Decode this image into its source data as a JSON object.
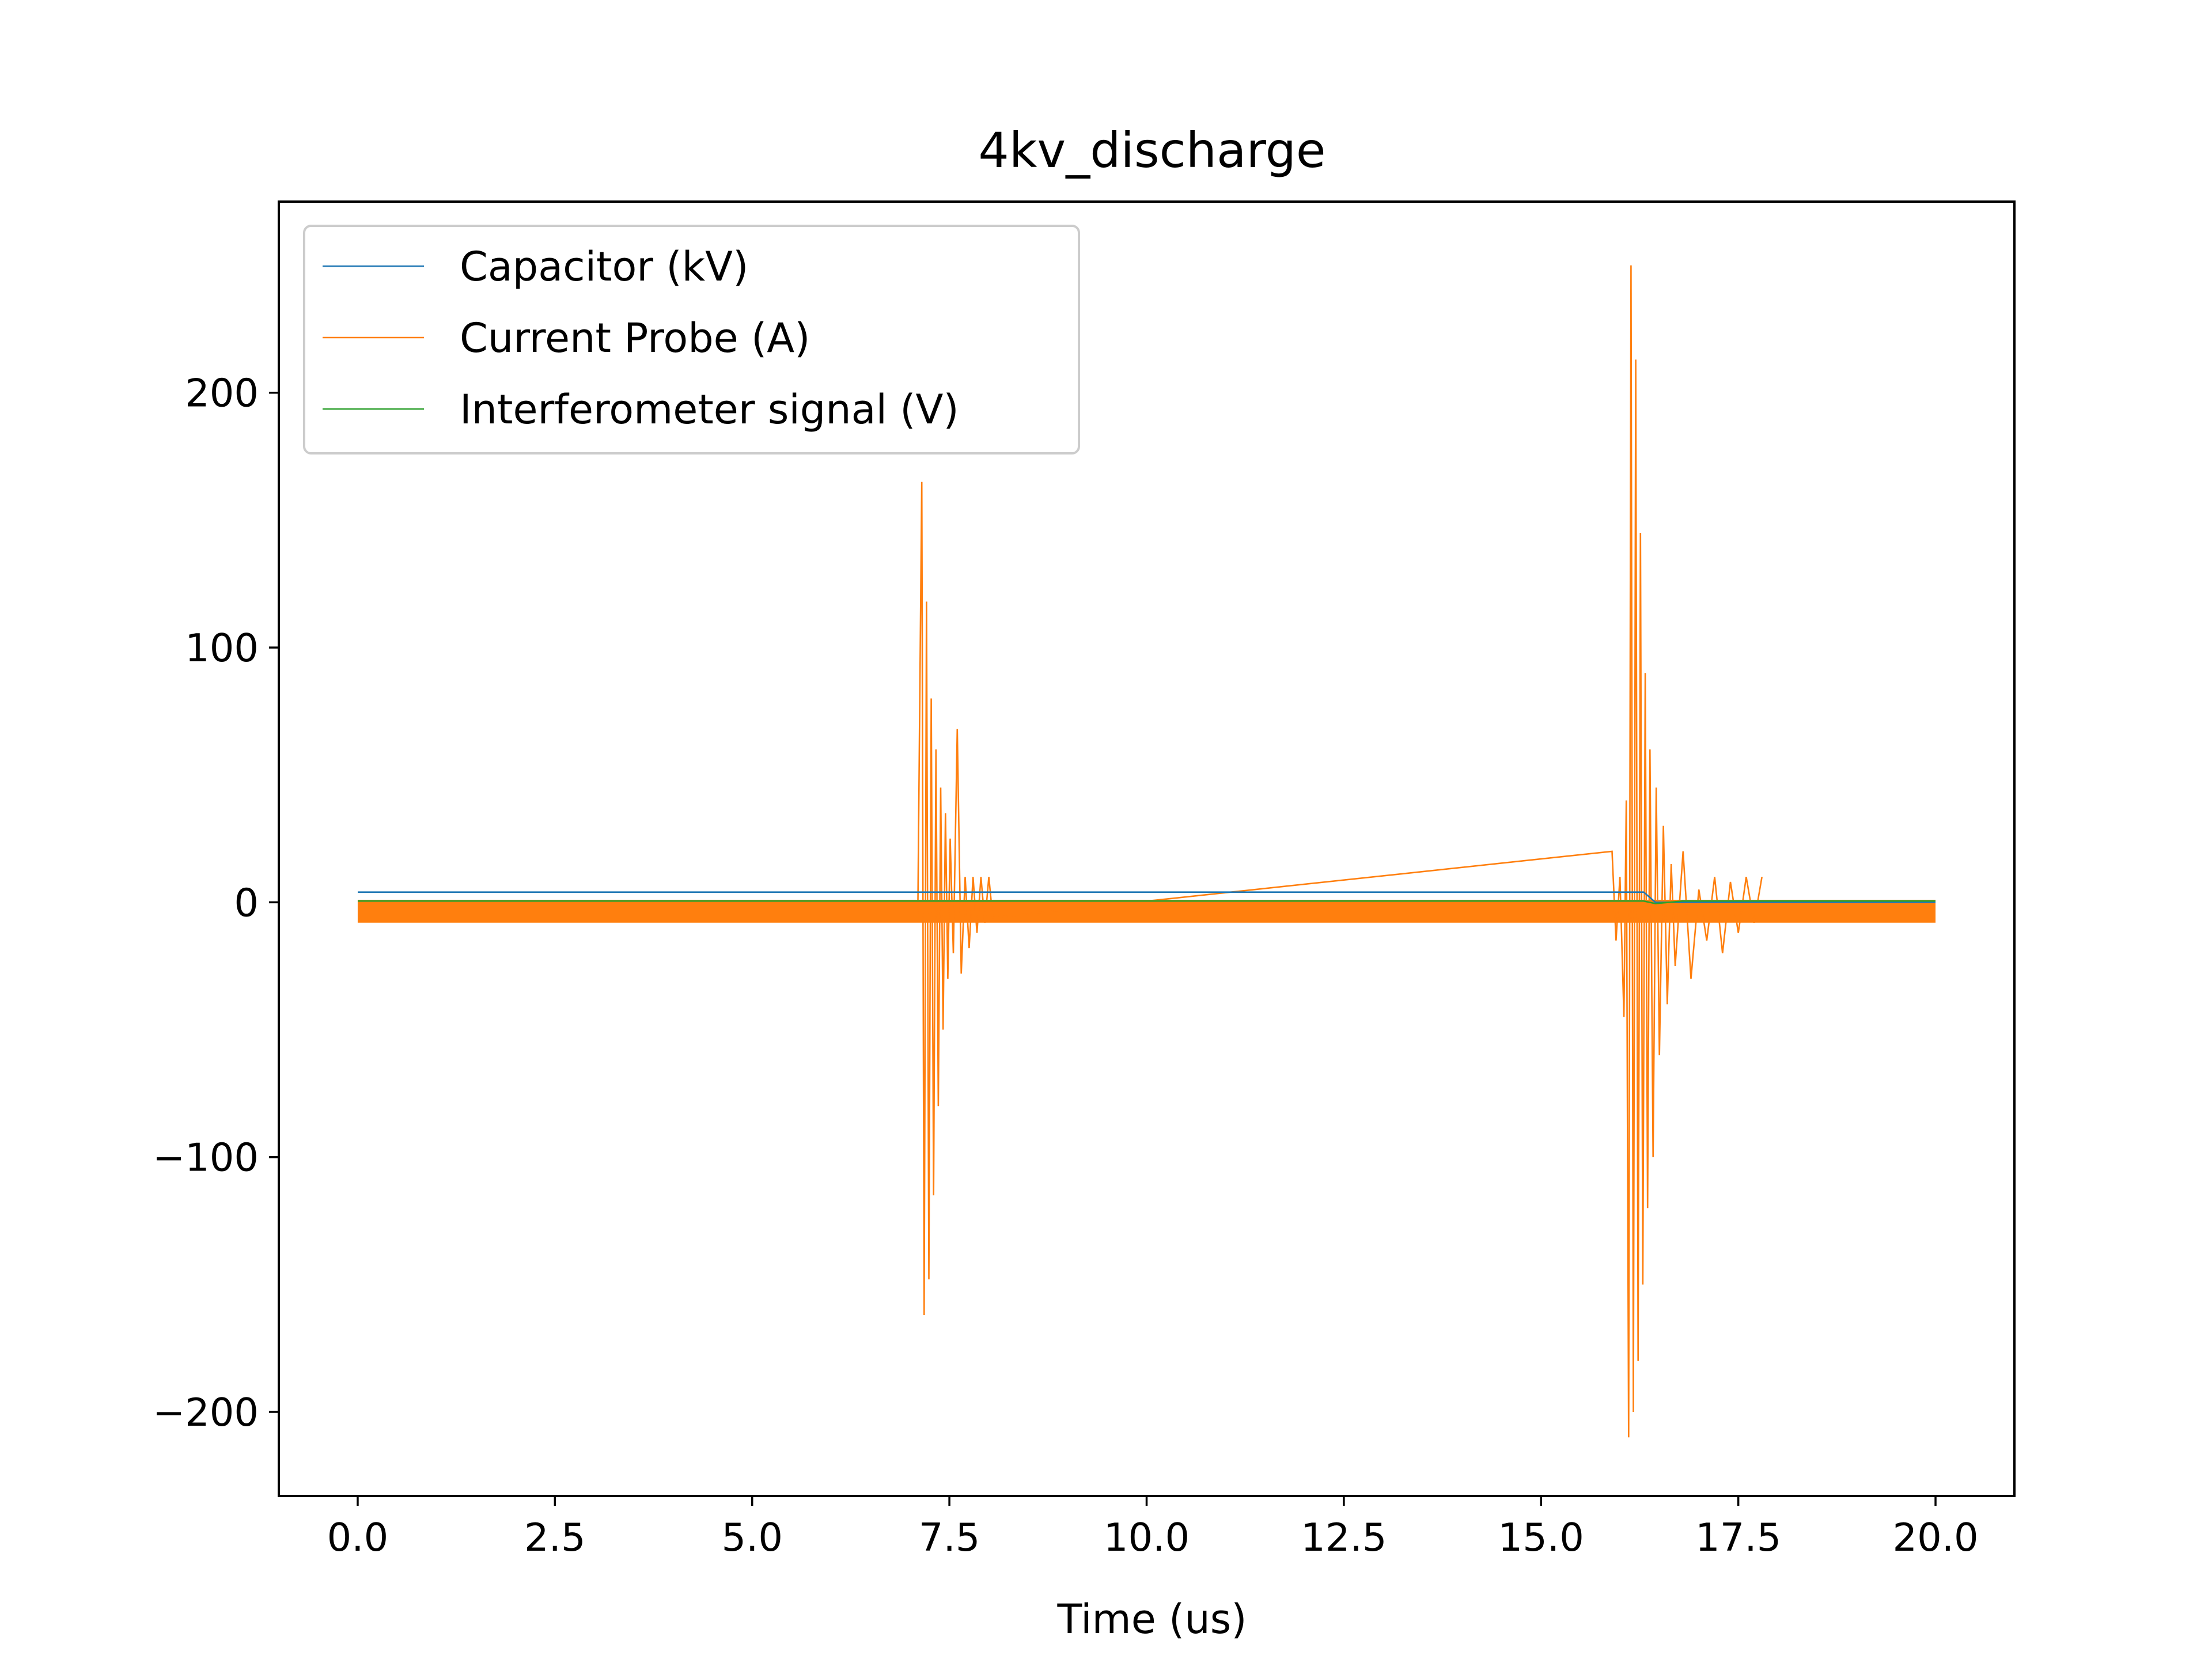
{
  "chart_data": {
    "type": "line",
    "title": "4kv_discharge",
    "xlabel": "Time (us)",
    "ylabel": "",
    "xlim": [
      -1.0,
      21.0
    ],
    "ylim": [
      -233,
      275
    ],
    "xticks": [
      0.0,
      2.5,
      5.0,
      7.5,
      10.0,
      12.5,
      15.0,
      17.5,
      20.0
    ],
    "xtick_labels": [
      "0.0",
      "2.5",
      "5.0",
      "7.5",
      "10.0",
      "12.5",
      "15.0",
      "17.5",
      "20.0"
    ],
    "yticks": [
      -200,
      -100,
      0,
      100,
      200
    ],
    "ytick_labels": [
      "−200",
      "−100",
      "0",
      "100",
      "200"
    ],
    "grid": false,
    "legend_position": "top-left",
    "series": [
      {
        "name": "Capacitor (kV)",
        "color": "#1f77b4",
        "x": [
          0.0,
          16.3,
          16.45,
          16.8,
          20.0
        ],
        "y": [
          4.0,
          4.0,
          0.0,
          0.0,
          0.0
        ]
      },
      {
        "name": "Current Probe (A)",
        "color": "#ff7f0e",
        "noise_band": [
          -8,
          1
        ],
        "x": [
          7.1,
          7.15,
          7.18,
          7.21,
          7.24,
          7.27,
          7.3,
          7.33,
          7.36,
          7.39,
          7.42,
          7.45,
          7.48,
          7.51,
          7.55,
          7.6,
          7.65,
          7.7,
          7.75,
          7.8,
          7.85,
          7.9,
          7.95,
          8.0,
          8.05,
          15.9,
          15.95,
          16.0,
          16.05,
          16.08,
          16.11,
          16.14,
          16.17,
          16.2,
          16.23,
          16.26,
          16.29,
          16.32,
          16.35,
          16.38,
          16.42,
          16.46,
          16.5,
          16.55,
          16.6,
          16.65,
          16.7,
          16.8,
          16.9,
          17.0,
          17.1,
          17.2,
          17.3,
          17.4,
          17.5,
          17.6,
          17.7,
          17.8
        ],
        "y": [
          -5,
          165,
          -162,
          118,
          -148,
          80,
          -115,
          60,
          -80,
          45,
          -50,
          35,
          -30,
          25,
          -20,
          68,
          -28,
          10,
          -18,
          10,
          -12,
          10,
          -8,
          10,
          -6,
          20,
          -15,
          10,
          -45,
          40,
          -210,
          250,
          -200,
          213,
          -180,
          145,
          -150,
          90,
          -120,
          60,
          -100,
          45,
          -60,
          30,
          -40,
          15,
          -25,
          20,
          -30,
          5,
          -15,
          10,
          -20,
          8,
          -12,
          10,
          -8,
          10
        ]
      },
      {
        "name": "Interferometer signal (V)",
        "color": "#2ca02c",
        "x": [
          0.0,
          16.3,
          16.45,
          16.8,
          20.0
        ],
        "y": [
          0.5,
          0.5,
          -0.5,
          0.5,
          0.5
        ]
      }
    ]
  }
}
